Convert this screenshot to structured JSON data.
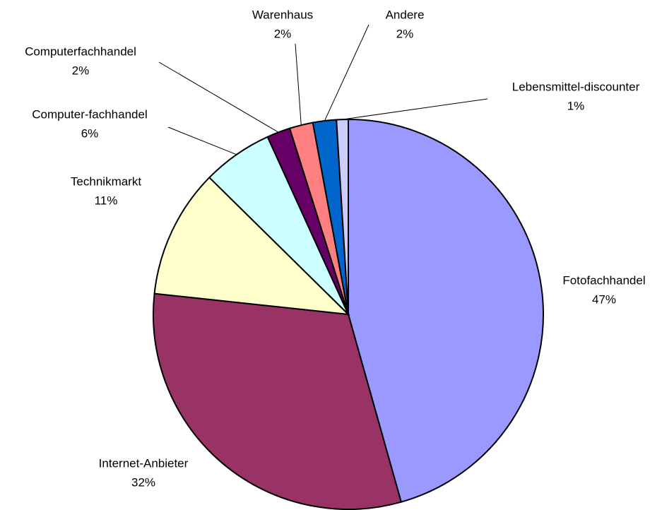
{
  "chart_data": {
    "type": "pie",
    "categories": [
      "Fotofachhandel",
      "Internet-Anbieter",
      "Technikmarkt",
      "Computer-fachhandel",
      "Computerfachhandel",
      "Warenhaus",
      "Andere",
      "Lebensmittel-discounter"
    ],
    "values": [
      47,
      32,
      11,
      6,
      2,
      2,
      2,
      1
    ],
    "value_labels": [
      "47%",
      "32%",
      "11%",
      "6%",
      "2%",
      "2%",
      "2%",
      "1%"
    ],
    "colors": [
      "#9999ff",
      "#993366",
      "#ffffcc",
      "#ccffff",
      "#660066",
      "#ff8080",
      "#0066cc",
      "#ccccff"
    ]
  }
}
